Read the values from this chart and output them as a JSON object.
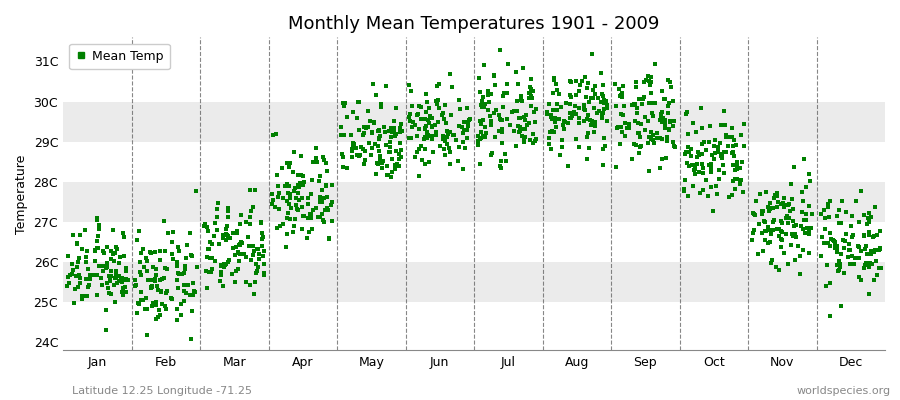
{
  "title": "Monthly Mean Temperatures 1901 - 2009",
  "ylabel": "Temperature",
  "yticks": [
    24,
    25,
    26,
    27,
    28,
    29,
    30,
    31
  ],
  "ytick_labels": [
    "24C",
    "25C",
    "26C",
    "27C",
    "28C",
    "29C",
    "30C",
    "31C"
  ],
  "ylim": [
    23.8,
    31.6
  ],
  "xlim": [
    0,
    12
  ],
  "months": [
    "Jan",
    "Feb",
    "Mar",
    "Apr",
    "May",
    "Jun",
    "Jul",
    "Aug",
    "Sep",
    "Oct",
    "Nov",
    "Dec"
  ],
  "month_centers": [
    0.5,
    1.5,
    2.5,
    3.5,
    4.5,
    5.5,
    6.5,
    7.5,
    8.5,
    9.5,
    10.5,
    11.5
  ],
  "month_means": [
    25.8,
    25.5,
    26.3,
    27.6,
    29.1,
    29.4,
    29.6,
    29.7,
    29.6,
    28.5,
    27.0,
    26.5
  ],
  "month_stds": [
    0.5,
    0.58,
    0.58,
    0.6,
    0.55,
    0.52,
    0.5,
    0.5,
    0.55,
    0.6,
    0.62,
    0.58
  ],
  "n_years": 109,
  "dot_color": "#008000",
  "dot_size": 5,
  "background_color": "#ffffff",
  "plot_bg_colors": [
    "#ffffff",
    "#ebebeb"
  ],
  "vline_color": "#555555",
  "title_fontsize": 13,
  "axis_label_fontsize": 9,
  "tick_fontsize": 9,
  "legend_label": "Mean Temp",
  "subtitle_left": "Latitude 12.25 Longitude -71.25",
  "subtitle_right": "worldspecies.org",
  "subtitle_fontsize": 8
}
